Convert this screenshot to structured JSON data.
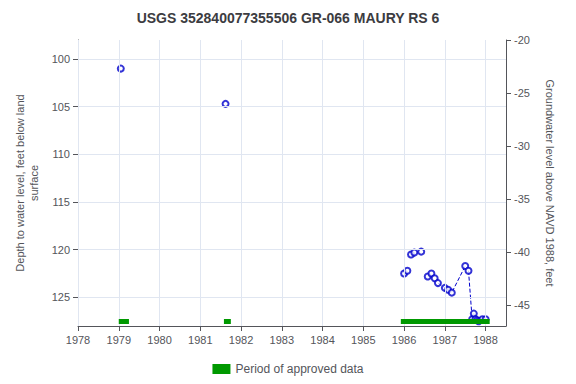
{
  "chart_data": {
    "type": "scatter",
    "title": "USGS 352840077355506 GR-066 MAURY RS 6",
    "ylabel": "Depth to water level, feet below land\nsurface",
    "y2label": "Groundwater level above NAVD 1988, feet",
    "xlim": [
      1978,
      1988.5
    ],
    "xticks": [
      1978,
      1979,
      1980,
      1981,
      1982,
      1983,
      1984,
      1985,
      1986,
      1987,
      1988
    ],
    "ylim": [
      128,
      98
    ],
    "yticks": [
      100,
      105,
      110,
      115,
      120,
      125
    ],
    "y2lim": [
      -47,
      -20
    ],
    "y2ticks": [
      -20,
      -25,
      -30,
      -35,
      -40,
      -45
    ],
    "grid": true,
    "legend": "bottom",
    "series": [
      {
        "type": "scatter",
        "marker": "emptyCircle",
        "color": "#0000cc",
        "x": [
          1979.05,
          1981.62,
          1986.0,
          1986.08,
          1986.17,
          1986.25,
          1986.42,
          1986.58,
          1986.67,
          1986.75,
          1986.83,
          1987.0,
          1987.08,
          1987.17,
          1987.5,
          1987.58,
          1987.67,
          1987.71,
          1987.75,
          1987.79,
          1987.83,
          1987.92,
          1988.0
        ],
        "values": [
          101.0,
          104.7,
          122.5,
          122.2,
          120.5,
          120.3,
          120.2,
          122.8,
          122.5,
          123.0,
          123.5,
          124.0,
          124.2,
          124.5,
          121.7,
          122.2,
          127.3,
          126.7,
          127.3,
          127.4,
          127.5,
          127.3,
          127.3
        ]
      },
      {
        "type": "line",
        "line_style": "dashed",
        "color": "#0000cc",
        "x": [
          1986.83,
          1987.0,
          1987.08,
          1987.17,
          1987.5
        ],
        "values": [
          123.5,
          124.0,
          124.2,
          124.5,
          121.7
        ]
      },
      {
        "type": "line",
        "line_style": "dashed",
        "color": "#0000cc",
        "x": [
          1987.58,
          1987.67,
          1987.71,
          1987.75,
          1987.79,
          1987.83,
          1987.92,
          1988.0
        ],
        "values": [
          122.2,
          127.3,
          126.7,
          127.3,
          127.4,
          127.5,
          127.3,
          127.3
        ]
      },
      {
        "type": "bar",
        "orientation": "horizontal",
        "name": "Period of approved data",
        "color": "#009900",
        "values": [
          [
            1979.0,
            1979.25
          ],
          [
            1981.58,
            1981.75
          ],
          [
            1985.92,
            1988.1
          ]
        ]
      }
    ]
  }
}
